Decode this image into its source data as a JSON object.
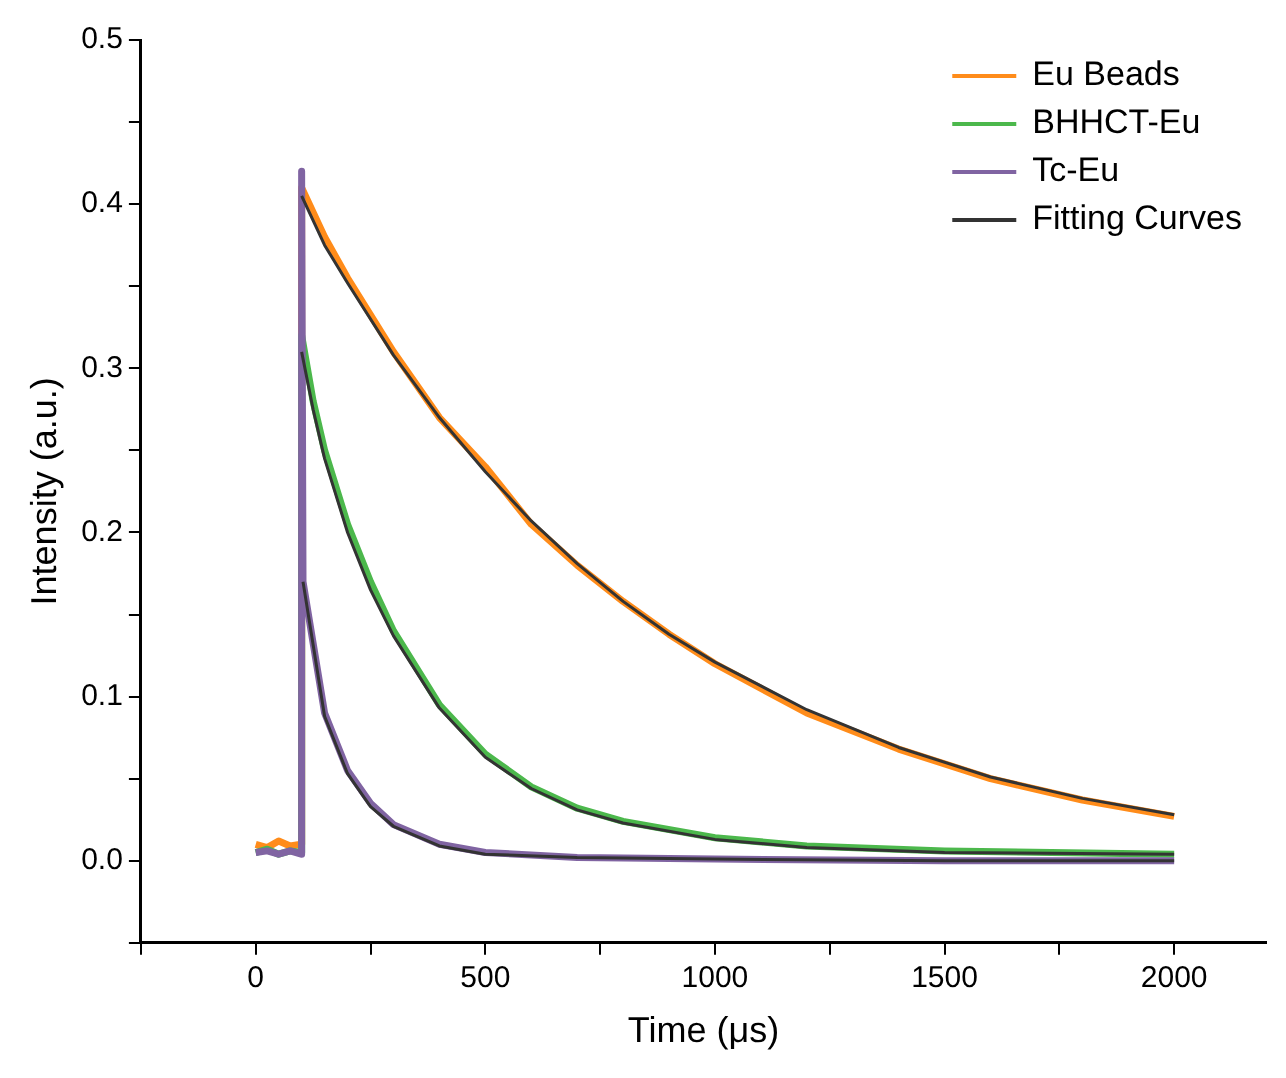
{
  "chart_data": {
    "type": "line",
    "xlabel": "Time (μs)",
    "ylabel": "Intensity (a.u.)",
    "xlim": [
      -250,
      2200
    ],
    "ylim": [
      -0.05,
      0.5
    ],
    "xticks": [
      {
        "value": -250,
        "label": null
      },
      0,
      {
        "value": 250,
        "label": null
      },
      500,
      {
        "value": 750,
        "label": null
      },
      1000,
      {
        "value": 1250,
        "label": null
      },
      1500,
      {
        "value": 1750,
        "label": null
      },
      2000
    ],
    "yticks": [
      {
        "value": -0.05,
        "label": null
      },
      {
        "value": 0,
        "label": "0.0"
      },
      {
        "value": 0.05,
        "label": null
      },
      {
        "value": 0.1,
        "label": "0.1"
      },
      {
        "value": 0.15,
        "label": null
      },
      {
        "value": 0.2,
        "label": "0.2"
      },
      {
        "value": 0.25,
        "label": null
      },
      {
        "value": 0.3,
        "label": "0.3"
      },
      {
        "value": 0.35,
        "label": null
      },
      {
        "value": 0.4,
        "label": "0.4"
      },
      {
        "value": 0.45,
        "label": null
      },
      {
        "value": 0.5,
        "label": "0.5"
      }
    ],
    "grid": false,
    "legend": "top right",
    "marker": "none",
    "line_style": "solid",
    "series": [
      {
        "name": "Eu Beads",
        "color": "#ff8c1a",
        "x": [
          0,
          25,
          50,
          75,
          99,
          100,
          150,
          200,
          300,
          400,
          500,
          600,
          700,
          800,
          900,
          1000,
          1200,
          1400,
          1600,
          1800,
          2000
        ],
        "values": [
          0.01,
          0.008,
          0.012,
          0.009,
          0.01,
          0.41,
          0.38,
          0.355,
          0.31,
          0.27,
          0.24,
          0.205,
          0.18,
          0.158,
          0.138,
          0.12,
          0.09,
          0.068,
          0.05,
          0.037,
          0.027
        ]
      },
      {
        "name": "BHHCT-Eu",
        "color": "#4cb84c",
        "x": [
          0,
          25,
          50,
          75,
          99,
          100,
          125,
          150,
          200,
          250,
          300,
          400,
          500,
          600,
          700,
          800,
          1000,
          1200,
          1500,
          2000
        ],
        "values": [
          0.005,
          0.007,
          0.004,
          0.006,
          0.005,
          0.32,
          0.28,
          0.25,
          0.205,
          0.17,
          0.14,
          0.095,
          0.065,
          0.045,
          0.032,
          0.024,
          0.014,
          0.009,
          0.006,
          0.004
        ]
      },
      {
        "name": "Tc-Eu",
        "color": "#8064a2",
        "x": [
          0,
          25,
          50,
          75,
          99,
          100,
          103,
          150,
          200,
          250,
          300,
          400,
          500,
          700,
          1000,
          1500,
          2000
        ],
        "values": [
          0.005,
          0.006,
          0.004,
          0.006,
          0.004,
          0.42,
          0.17,
          0.09,
          0.055,
          0.035,
          0.022,
          0.01,
          0.005,
          0.002,
          0.001,
          0.0,
          0.0
        ]
      },
      {
        "name": "Fitting Curves",
        "color": "#333333",
        "x": [
          100,
          150,
          200,
          300,
          400,
          500,
          600,
          700,
          800,
          900,
          1000,
          1200,
          1400,
          1600,
          1800,
          2000
        ],
        "values": [
          0.405,
          0.375,
          0.352,
          0.308,
          0.27,
          0.237,
          0.207,
          0.181,
          0.158,
          0.138,
          0.121,
          0.092,
          0.069,
          0.051,
          0.038,
          0.028
        ]
      },
      {
        "color": "#333333",
        "x": [
          100,
          125,
          150,
          200,
          250,
          300,
          400,
          500,
          600,
          700,
          800,
          1000,
          1200,
          1500,
          2000
        ],
        "values": [
          0.31,
          0.275,
          0.245,
          0.2,
          0.165,
          0.137,
          0.093,
          0.063,
          0.044,
          0.031,
          0.023,
          0.013,
          0.008,
          0.005,
          0.004
        ]
      },
      {
        "color": "#333333",
        "x": [
          103,
          150,
          200,
          250,
          300,
          400,
          500,
          700,
          1000,
          1500,
          2000
        ],
        "values": [
          0.17,
          0.088,
          0.053,
          0.033,
          0.021,
          0.009,
          0.004,
          0.002,
          0.001,
          0.0,
          0.0
        ]
      }
    ]
  }
}
